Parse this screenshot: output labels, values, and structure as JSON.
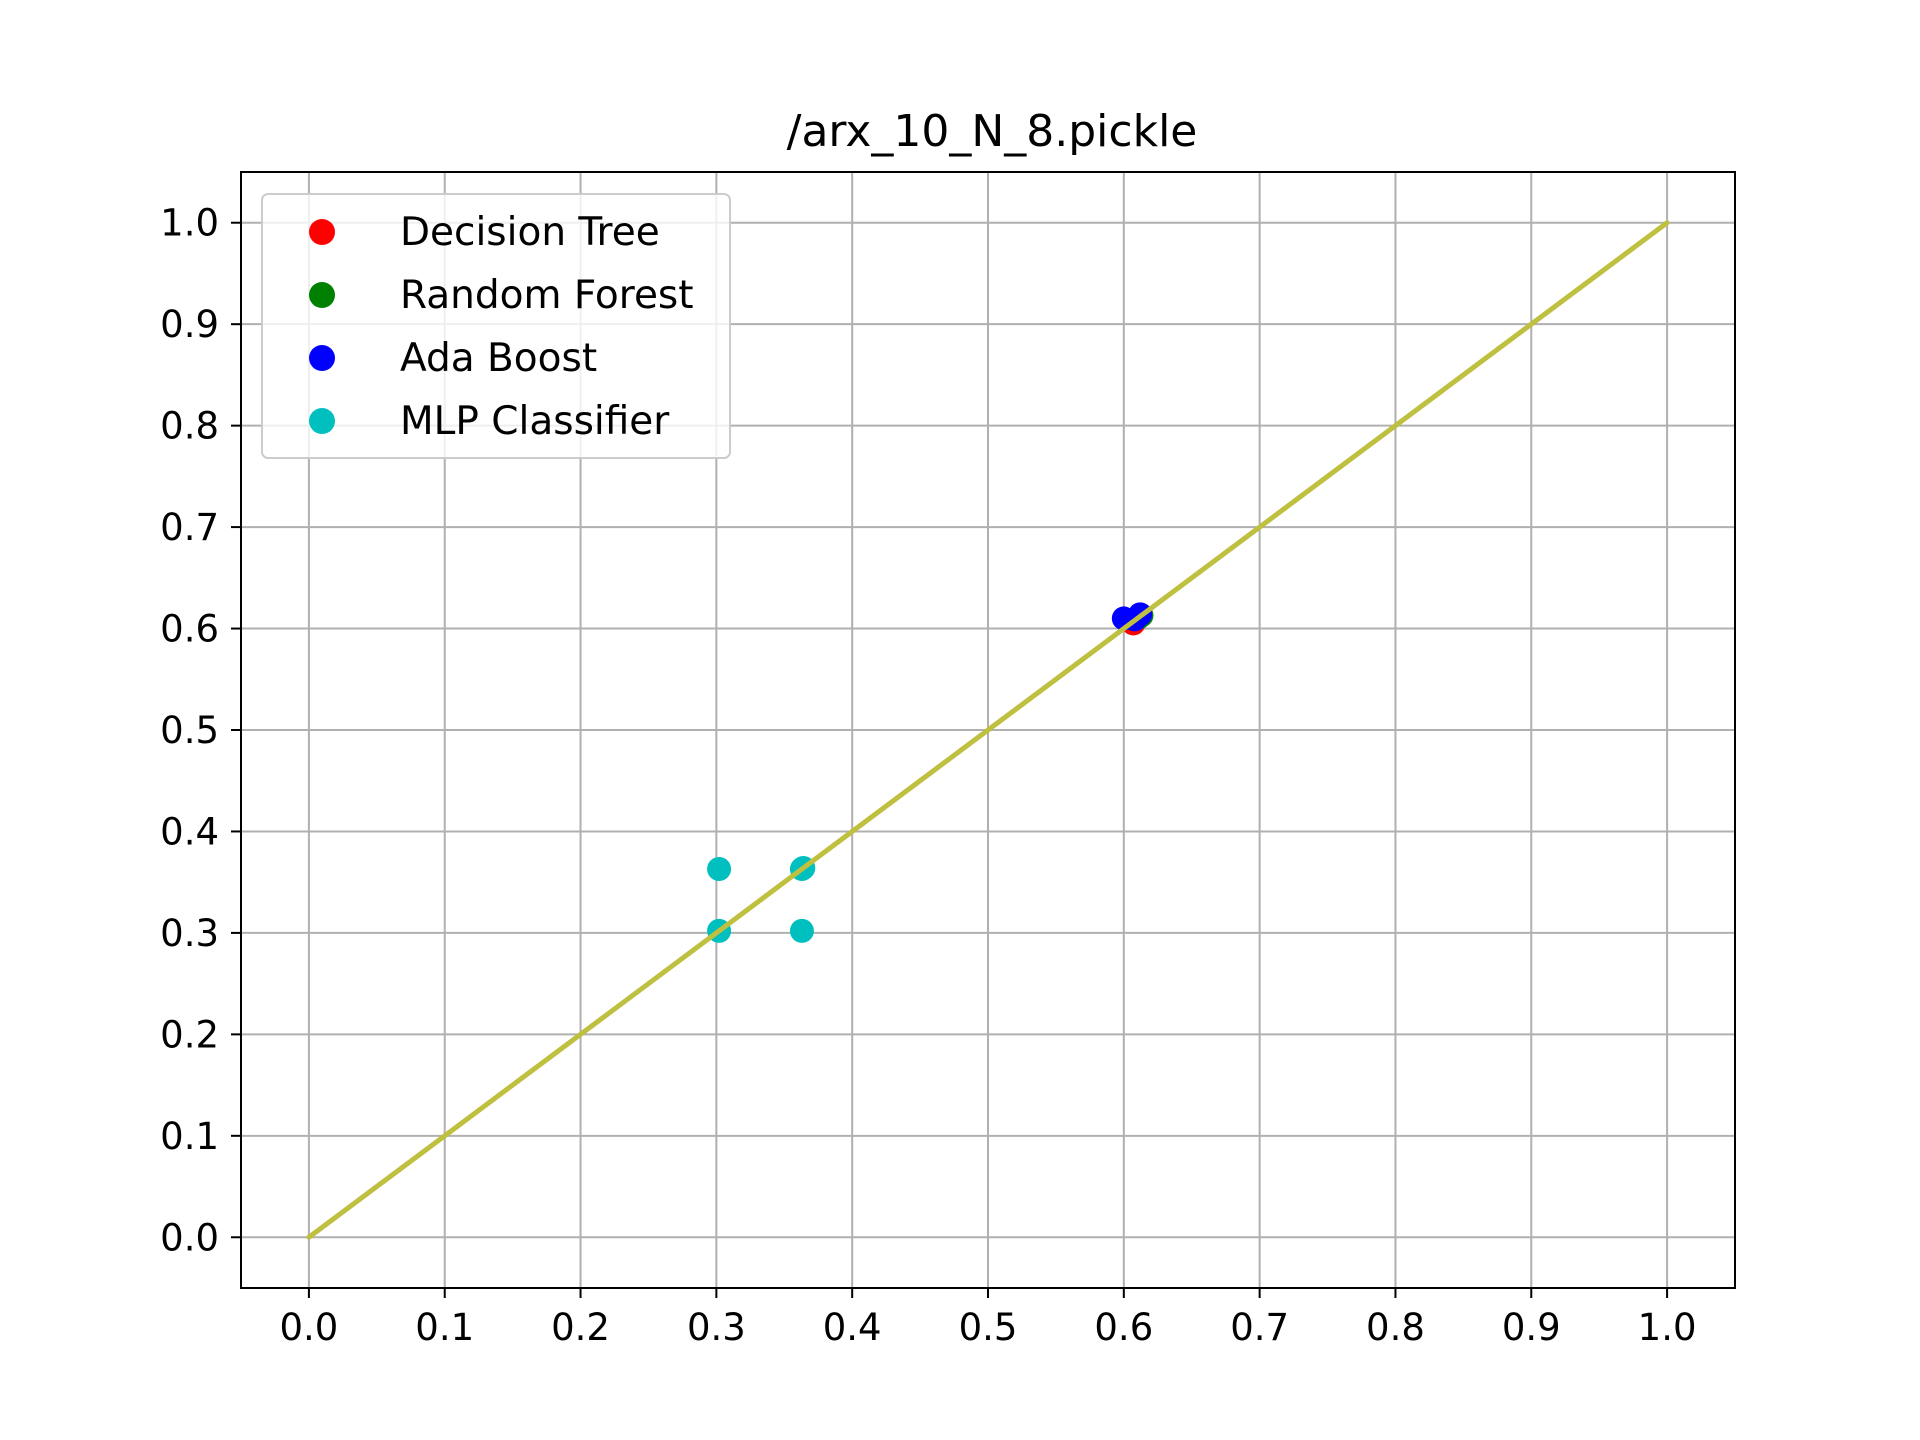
{
  "chart_data": {
    "type": "scatter",
    "title": "/arx_10_N_8.pickle",
    "xlabel": "",
    "ylabel": "",
    "xlim": [
      -0.05,
      1.05
    ],
    "ylim": [
      -0.05,
      1.05
    ],
    "xticks": [
      "0.0",
      "0.1",
      "0.2",
      "0.3",
      "0.4",
      "0.5",
      "0.6",
      "0.7",
      "0.8",
      "0.9",
      "1.0"
    ],
    "yticks": [
      "0.0",
      "0.1",
      "0.2",
      "0.3",
      "0.4",
      "0.5",
      "0.6",
      "0.7",
      "0.8",
      "0.9",
      "1.0"
    ],
    "grid": true,
    "legend_position": "upper-left",
    "series": [
      {
        "name": "Decision Tree",
        "color": "#ff0000",
        "points": [
          [
            0.607,
            0.605
          ],
          [
            0.61,
            0.611
          ]
        ]
      },
      {
        "name": "Random Forest",
        "color": "#008000",
        "points": [
          [
            0.613,
            0.613
          ],
          [
            0.611,
            0.611
          ]
        ]
      },
      {
        "name": "Ada Boost",
        "color": "#0000ff",
        "points": [
          [
            0.6,
            0.61
          ],
          [
            0.612,
            0.614
          ],
          [
            0.608,
            0.609
          ]
        ]
      },
      {
        "name": "MLP Classifier",
        "color": "#00bfbf",
        "points": [
          [
            0.302,
            0.363
          ],
          [
            0.363,
            0.363
          ],
          [
            0.302,
            0.302
          ],
          [
            0.363,
            0.302
          ],
          [
            0.364,
            0.364
          ]
        ]
      }
    ],
    "reference_line": {
      "color": "#bfbf40",
      "x": [
        0.0,
        1.0
      ],
      "y": [
        0.0,
        1.0
      ]
    }
  }
}
